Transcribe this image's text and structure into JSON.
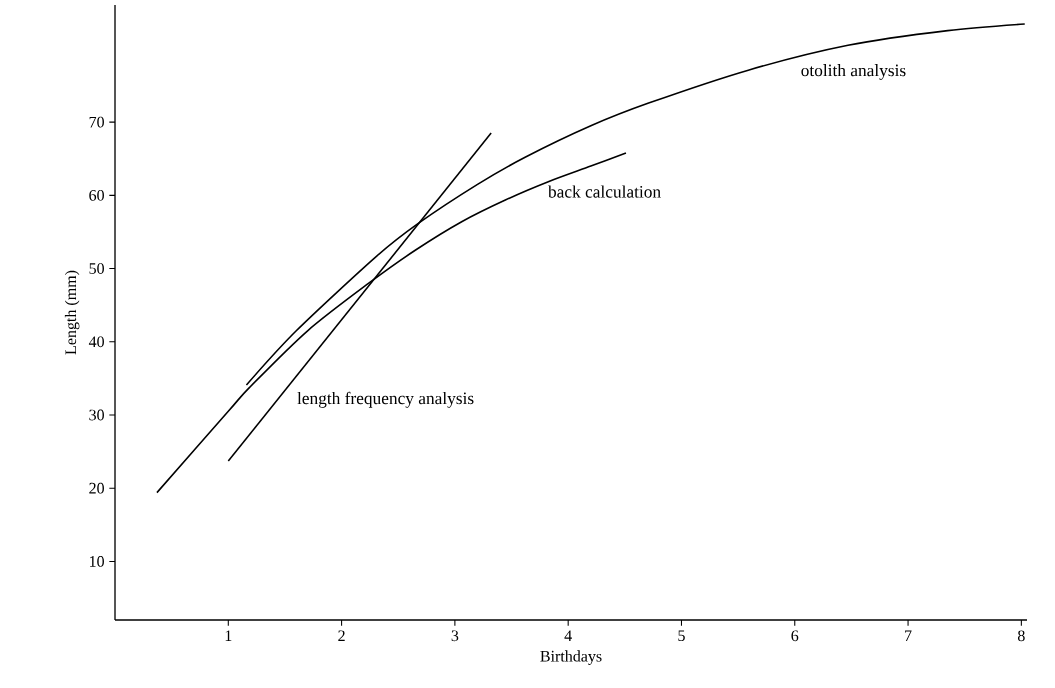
{
  "chart_data": {
    "type": "line",
    "xlabel": "Birthdays",
    "ylabel": "Length (mm)",
    "xlim": [
      0,
      8.05
    ],
    "ylim": [
      2,
      86
    ],
    "xticks": [
      1,
      2,
      3,
      4,
      5,
      6,
      7,
      8
    ],
    "yticks": [
      10,
      20,
      30,
      40,
      50,
      60,
      70
    ],
    "grid": false,
    "marker": "none",
    "line_style": "solid",
    "series": [
      {
        "name": "otolith analysis",
        "color": "#000000",
        "x": [
          1.16,
          1.6,
          2.31,
          2.68,
          3.2,
          3.62,
          4.2,
          4.71,
          5.59,
          6.47,
          7.35,
          8.03
        ],
        "values": [
          34.1,
          41.5,
          51.7,
          56.2,
          61.5,
          65.2,
          69.5,
          72.6,
          77.1,
          80.5,
          82.5,
          83.4
        ]
      },
      {
        "name": "back calculation",
        "color": "#000000",
        "x": [
          0.37,
          1.0,
          1.19,
          1.7,
          2.24,
          2.65,
          3.06,
          3.45,
          3.83,
          4.2,
          4.51
        ],
        "values": [
          19.4,
          30.5,
          33.8,
          41.5,
          48.0,
          52.5,
          56.4,
          59.4,
          61.9,
          64.0,
          65.8
        ]
      },
      {
        "name": "length frequency analysis",
        "color": "#000000",
        "x": [
          1.0,
          3.32
        ],
        "values": [
          23.7,
          68.5
        ]
      }
    ]
  }
}
